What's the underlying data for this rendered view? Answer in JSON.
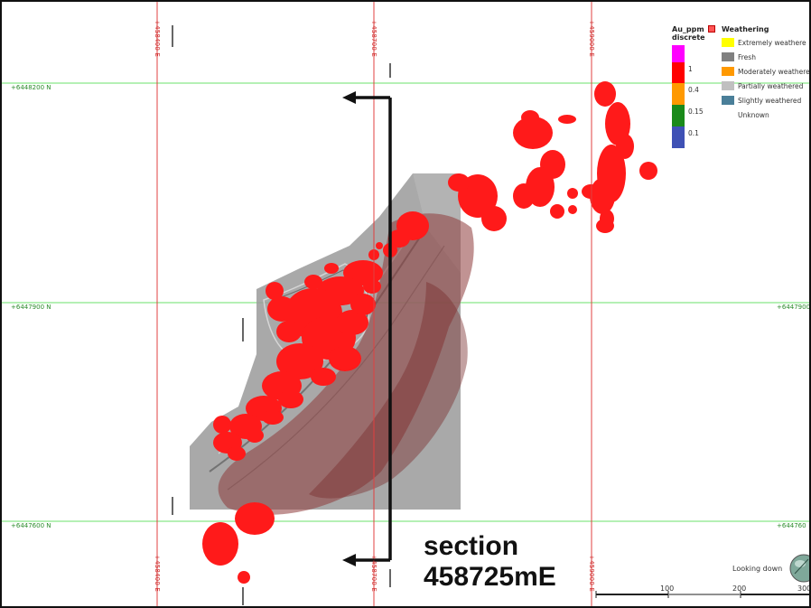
{
  "easting_ticks": [
    "+458400 E",
    "+458700 E",
    "+459000 E",
    "+458400 E",
    "+458700 E",
    "+459000 E"
  ],
  "northing_ticks": [
    "+6448200 N",
    "+6447900 N",
    "+6447900",
    "+6447600 N",
    "+644760"
  ],
  "legend_au": {
    "title_line1": "Au_ppm",
    "title_line2": "discrete",
    "items": [
      {
        "label": "1",
        "color": "#ff00ff"
      },
      {
        "label": "0.4",
        "color": "#ff0000"
      },
      {
        "label": "0.15",
        "color": "#ff9900"
      },
      {
        "label": "0.1",
        "color": "#1a8a1a"
      },
      {
        "label": "",
        "color": "#3f51b5"
      }
    ]
  },
  "legend_weathering": {
    "title": "Weathering",
    "items": [
      {
        "label": "Extremely weathere",
        "color": "#ffff00"
      },
      {
        "label": "Fresh",
        "color": "#808080"
      },
      {
        "label": "Moderately weathere",
        "color": "#ff9900"
      },
      {
        "label": "Partially weathered",
        "color": "#c0c0c0"
      },
      {
        "label": "Slightly weathered",
        "color": "#4a7f99"
      },
      {
        "label": "Unknown",
        "color": ""
      }
    ]
  },
  "section_label": {
    "line1": "section",
    "line2": "458725mE"
  },
  "scale_bar": {
    "ticks": [
      "100",
      "200",
      "300"
    ]
  },
  "view_label": "Looking down",
  "colors": {
    "gridline_easting": "#e04040",
    "gridline_northing": "#66dd66",
    "orebody": "#ff1a1a",
    "pit_shell": "#8a8a8a",
    "weathered_zone": "#8e3b3b"
  }
}
